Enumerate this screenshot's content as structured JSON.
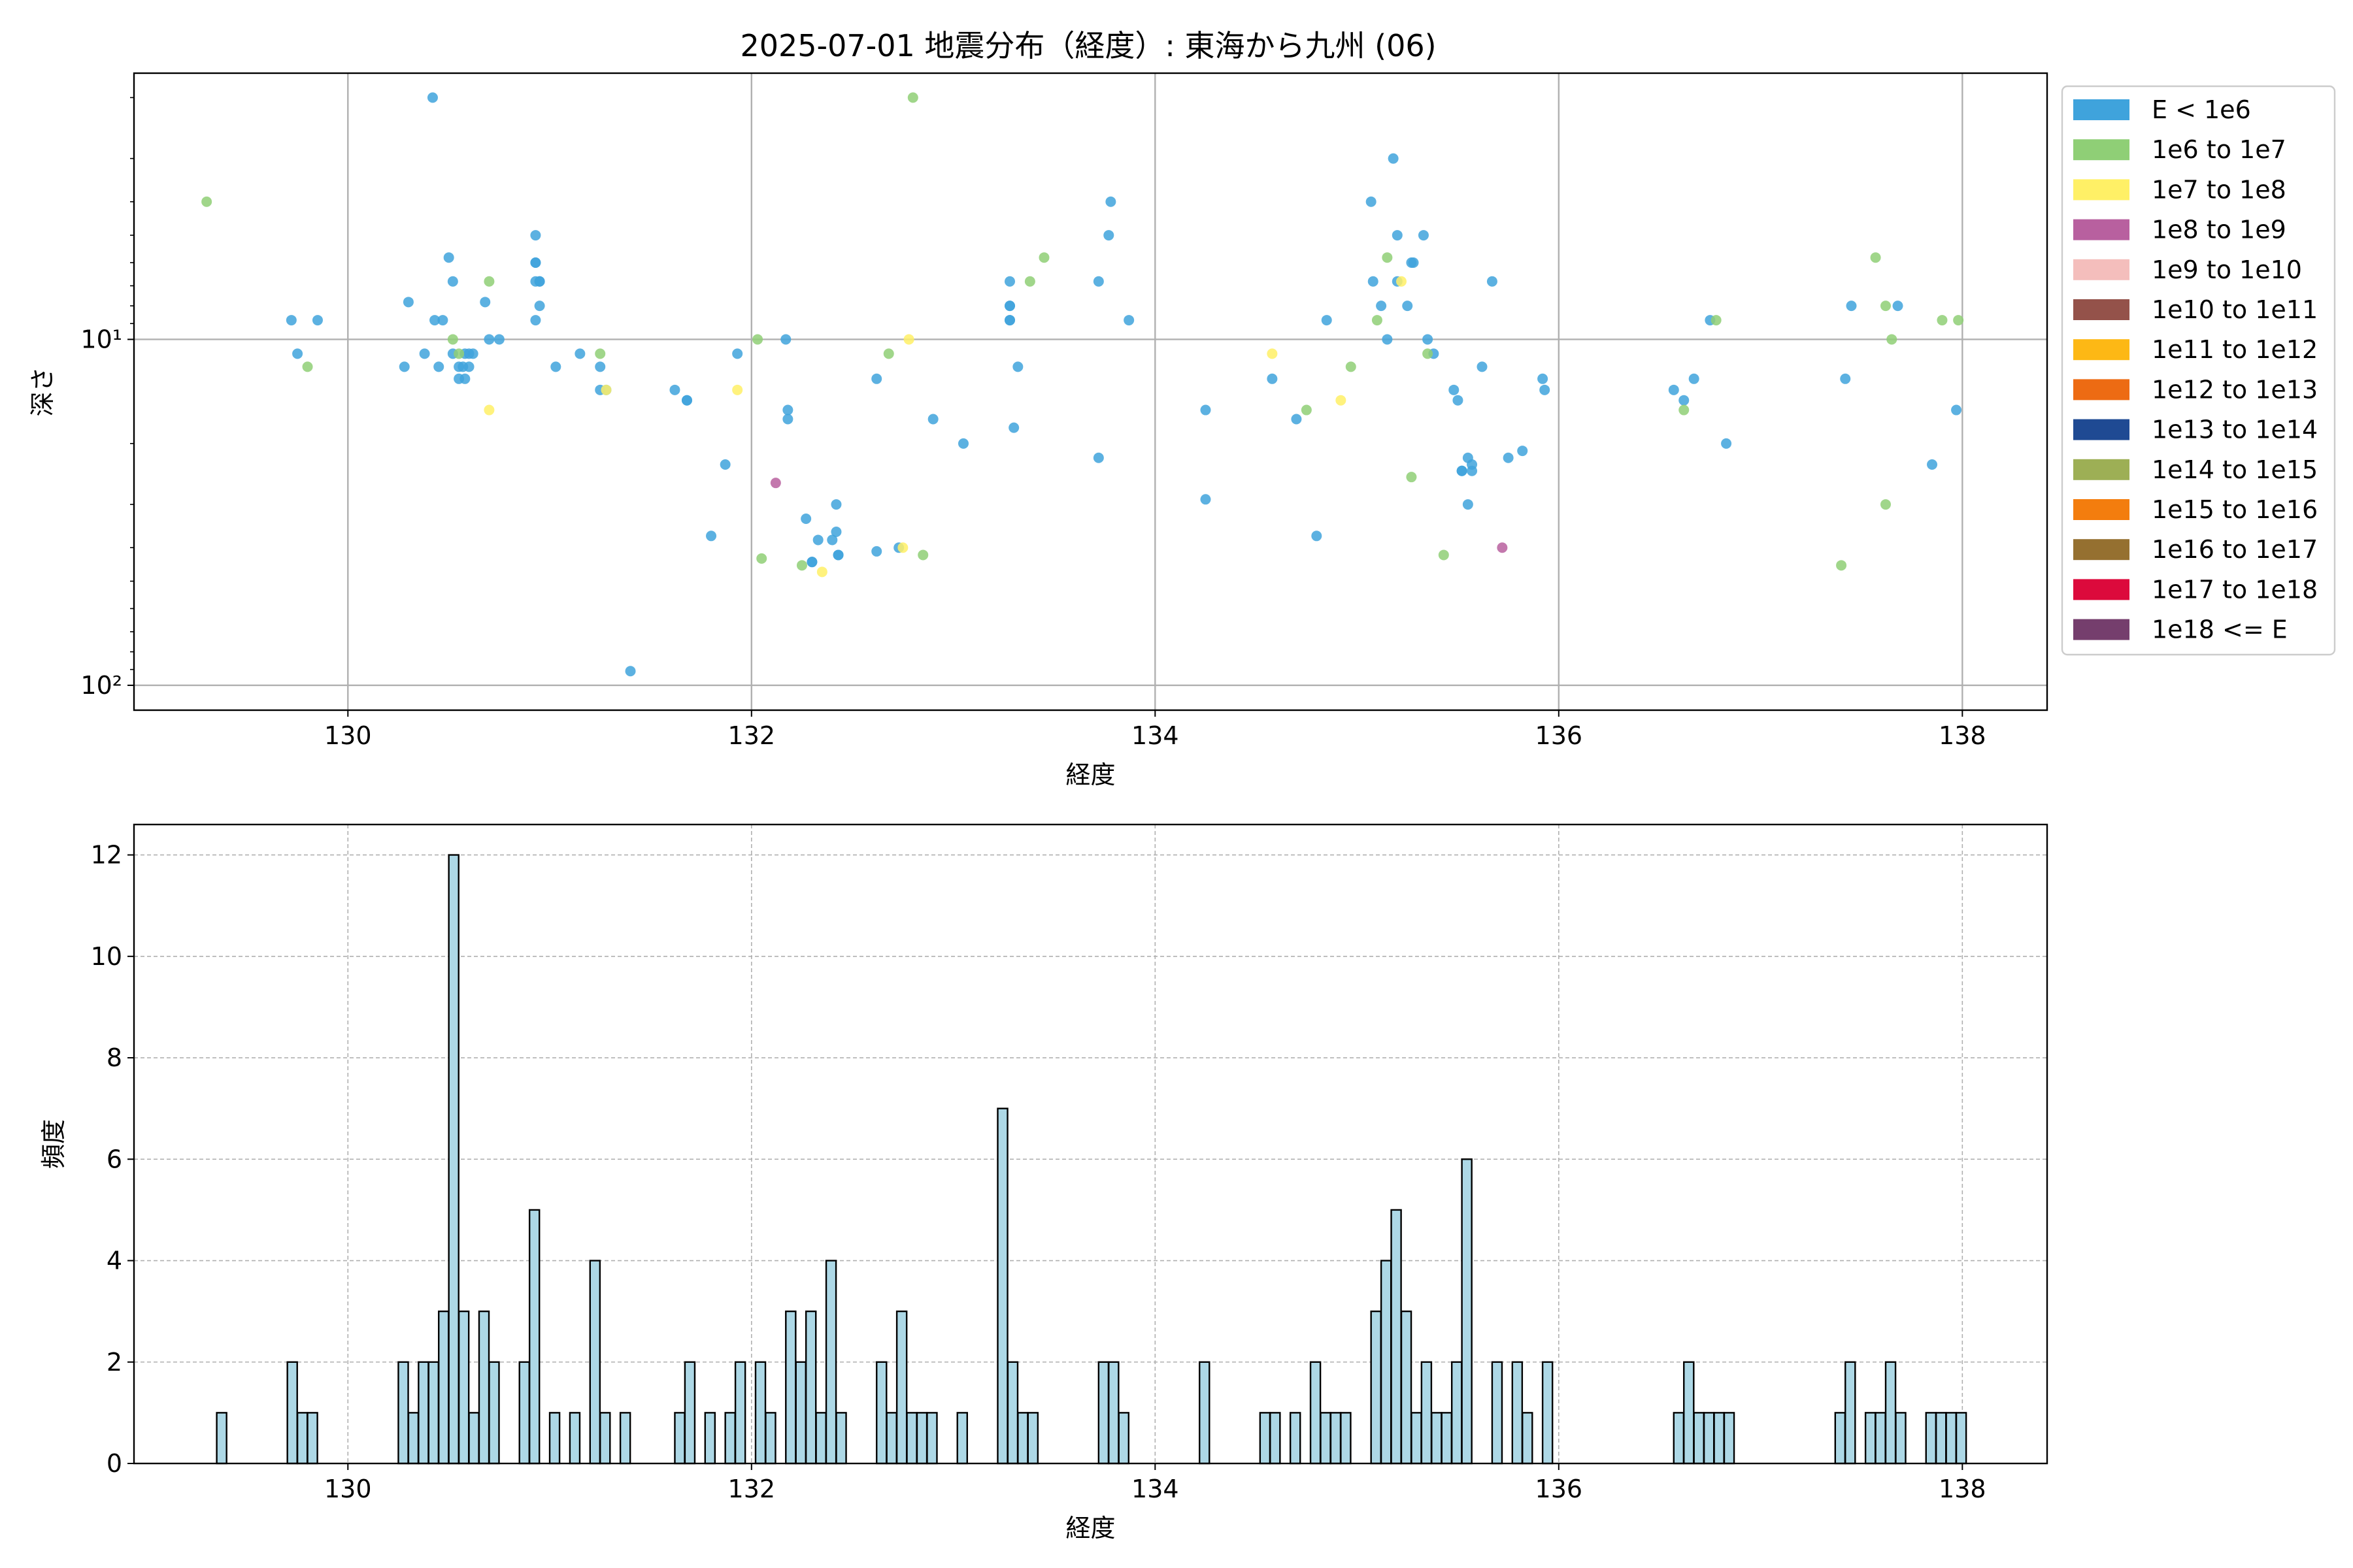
{
  "figure": {
    "title": "2025-07-01 地震分布（経度）: 東海から九州 (06)"
  },
  "chart_data": [
    {
      "type": "scatter",
      "title": "2025-07-01 地震分布（経度）: 東海から九州 (06)",
      "xlabel": "経度",
      "ylabel": "深さ",
      "xlim": [
        128.94,
        138.42
      ],
      "ylim": [
        118,
        1.7
      ],
      "yscale": "log",
      "y_inverted": true,
      "grid": true,
      "xticks": [
        130,
        132,
        134,
        136,
        138
      ],
      "xtick_labels": [
        "130",
        "132",
        "134",
        "136",
        "138"
      ],
      "yticks": [
        10,
        100
      ],
      "ytick_labels": [
        "10¹",
        "10²"
      ],
      "legend_position": "outside upper right",
      "legend": [
        {
          "label": "E < 1e6",
          "color": "#3fa3dc"
        },
        {
          "label": "1e6 to 1e7",
          "color": "#8fcf76"
        },
        {
          "label": "1e7 to 1e8",
          "color": "#fff066"
        },
        {
          "label": "1e8 to 1e9",
          "color": "#b8609f"
        },
        {
          "label": "1e9 to 1e10",
          "color": "#f4bebc"
        },
        {
          "label": "1e10 to 1e11",
          "color": "#94524a"
        },
        {
          "label": "1e11 to 1e12",
          "color": "#fdb815"
        },
        {
          "label": "1e12 to 1e13",
          "color": "#ed6b13"
        },
        {
          "label": "1e13 to 1e14",
          "color": "#1f4a93"
        },
        {
          "label": "1e14 to 1e15",
          "color": "#9daf55"
        },
        {
          "label": "1e15 to 1e16",
          "color": "#f37d0e"
        },
        {
          "label": "1e16 to 1e17",
          "color": "#957030"
        },
        {
          "label": "1e17 to 1e18",
          "color": "#dc0a3c"
        },
        {
          "label": "1e18 <= E",
          "color": "#753e6d"
        }
      ],
      "series": [
        {
          "name": "E < 1e6",
          "color": "#3fa3dc",
          "points": [
            [
              130.42,
              2.0
            ],
            [
              129.72,
              8.8
            ],
            [
              129.85,
              8.8
            ],
            [
              129.75,
              11
            ],
            [
              130.28,
              12
            ],
            [
              130.3,
              7.8
            ],
            [
              130.38,
              11
            ],
            [
              130.43,
              8.8
            ],
            [
              130.47,
              8.8
            ],
            [
              130.45,
              12
            ],
            [
              130.5,
              5.8
            ],
            [
              130.52,
              6.8
            ],
            [
              130.52,
              11
            ],
            [
              130.55,
              12
            ],
            [
              130.57,
              12
            ],
            [
              130.58,
              11
            ],
            [
              130.6,
              12
            ],
            [
              130.6,
              11
            ],
            [
              130.62,
              11
            ],
            [
              130.55,
              13
            ],
            [
              130.58,
              13
            ],
            [
              130.68,
              7.8
            ],
            [
              130.7,
              10
            ],
            [
              130.75,
              10
            ],
            [
              130.93,
              5
            ],
            [
              130.93,
              6
            ],
            [
              130.93,
              6
            ],
            [
              130.95,
              8
            ],
            [
              130.95,
              6.8
            ],
            [
              130.95,
              6.8
            ],
            [
              130.93,
              6.8
            ],
            [
              130.93,
              8.8
            ],
            [
              131.03,
              12
            ],
            [
              131.15,
              11
            ],
            [
              131.25,
              12
            ],
            [
              131.25,
              14
            ],
            [
              131.28,
              14
            ],
            [
              131.4,
              91
            ],
            [
              131.62,
              14
            ],
            [
              131.68,
              15
            ],
            [
              131.68,
              15
            ],
            [
              131.87,
              23
            ],
            [
              131.93,
              11
            ],
            [
              131.8,
              37
            ],
            [
              132.17,
              10
            ],
            [
              132.18,
              16
            ],
            [
              132.18,
              17
            ],
            [
              132.27,
              33
            ],
            [
              132.3,
              44
            ],
            [
              132.3,
              44
            ],
            [
              132.33,
              38
            ],
            [
              132.4,
              38
            ],
            [
              132.42,
              36
            ],
            [
              132.42,
              30
            ],
            [
              132.43,
              42
            ],
            [
              132.43,
              42
            ],
            [
              132.62,
              41
            ],
            [
              132.62,
              13
            ],
            [
              132.73,
              40
            ],
            [
              132.9,
              17
            ],
            [
              133.05,
              20
            ],
            [
              133.28,
              6.8
            ],
            [
              133.28,
              8.0
            ],
            [
              133.28,
              8.0
            ],
            [
              133.28,
              8.8
            ],
            [
              133.28,
              8.8
            ],
            [
              133.3,
              18
            ],
            [
              133.32,
              12
            ],
            [
              133.72,
              6.8
            ],
            [
              133.72,
              22
            ],
            [
              133.77,
              5
            ],
            [
              133.78,
              4
            ],
            [
              133.87,
              8.8
            ],
            [
              134.25,
              16
            ],
            [
              134.25,
              29
            ],
            [
              134.58,
              13
            ],
            [
              134.7,
              17
            ],
            [
              134.8,
              37
            ],
            [
              134.85,
              8.8
            ],
            [
              135.07,
              4
            ],
            [
              135.08,
              6.8
            ],
            [
              135.12,
              8
            ],
            [
              135.15,
              10
            ],
            [
              135.18,
              3
            ],
            [
              135.2,
              5
            ],
            [
              135.2,
              6.8
            ],
            [
              135.25,
              8
            ],
            [
              135.27,
              6
            ],
            [
              135.28,
              6
            ],
            [
              135.33,
              5
            ],
            [
              135.35,
              10
            ],
            [
              135.38,
              11
            ],
            [
              135.48,
              14
            ],
            [
              135.5,
              15
            ],
            [
              135.52,
              24
            ],
            [
              135.52,
              24
            ],
            [
              135.55,
              22
            ],
            [
              135.55,
              30
            ],
            [
              135.57,
              24
            ],
            [
              135.57,
              23
            ],
            [
              135.62,
              12
            ],
            [
              135.67,
              6.8
            ],
            [
              135.75,
              22
            ],
            [
              135.82,
              21
            ],
            [
              135.92,
              13
            ],
            [
              135.93,
              14
            ],
            [
              136.57,
              14
            ],
            [
              136.62,
              15
            ],
            [
              136.67,
              13
            ],
            [
              136.75,
              8.8
            ],
            [
              136.83,
              20
            ],
            [
              137.42,
              13
            ],
            [
              137.45,
              8
            ],
            [
              137.68,
              8
            ],
            [
              137.85,
              23
            ],
            [
              137.97,
              16
            ]
          ]
        },
        {
          "name": "1e6 to 1e7",
          "color": "#8fcf76",
          "points": [
            [
              129.3,
              4
            ],
            [
              129.8,
              12
            ],
            [
              130.52,
              10
            ],
            [
              130.55,
              11
            ],
            [
              130.7,
              6.8
            ],
            [
              131.25,
              11
            ],
            [
              132.03,
              10
            ],
            [
              132.05,
              43
            ],
            [
              132.25,
              45
            ],
            [
              132.68,
              11
            ],
            [
              132.8,
              2.0
            ],
            [
              132.85,
              42
            ],
            [
              133.38,
              6.8
            ],
            [
              133.45,
              5.8
            ],
            [
              134.75,
              16
            ],
            [
              134.97,
              12
            ],
            [
              135.1,
              8.8
            ],
            [
              135.15,
              5.8
            ],
            [
              135.27,
              25
            ],
            [
              135.35,
              11
            ],
            [
              135.43,
              42
            ],
            [
              136.62,
              16
            ],
            [
              136.78,
              8.8
            ],
            [
              137.4,
              45
            ],
            [
              137.57,
              5.8
            ],
            [
              137.62,
              30
            ],
            [
              137.62,
              8
            ],
            [
              137.65,
              10
            ],
            [
              137.9,
              8.8
            ],
            [
              137.98,
              8.8
            ]
          ]
        },
        {
          "name": "1e7 to 1e8",
          "color": "#fff066",
          "points": [
            [
              130.7,
              16
            ],
            [
              131.28,
              14
            ],
            [
              131.93,
              14
            ],
            [
              132.35,
              47
            ],
            [
              132.75,
              40
            ],
            [
              132.78,
              10
            ],
            [
              134.58,
              11
            ],
            [
              134.92,
              15
            ],
            [
              135.22,
              6.8
            ]
          ]
        },
        {
          "name": "1e8 to 1e9",
          "color": "#b8609f",
          "points": [
            [
              132.12,
              26
            ],
            [
              135.72,
              40
            ]
          ]
        }
      ]
    },
    {
      "type": "bar",
      "title": "",
      "xlabel": "経度",
      "ylabel": "頻度",
      "xlim": [
        128.94,
        138.42
      ],
      "ylim": [
        0,
        12.6
      ],
      "grid": true,
      "grid_style": "dashed",
      "bar_color": "#add8e6",
      "edge_color": "#000000",
      "bin_width": 0.0488,
      "xticks": [
        130,
        132,
        134,
        136,
        138
      ],
      "xtick_labels": [
        "130",
        "132",
        "134",
        "136",
        "138"
      ],
      "yticks": [
        0,
        2,
        4,
        6,
        8,
        10,
        12
      ],
      "ytick_labels": [
        "0",
        "2",
        "4",
        "6",
        "8",
        "10",
        "12"
      ],
      "bins": [
        [
          129.35,
          1
        ],
        [
          129.7,
          2
        ],
        [
          129.75,
          1
        ],
        [
          129.8,
          1
        ],
        [
          130.25,
          2
        ],
        [
          130.3,
          1
        ],
        [
          130.35,
          2
        ],
        [
          130.4,
          2
        ],
        [
          130.45,
          3
        ],
        [
          130.5,
          12
        ],
        [
          130.55,
          3
        ],
        [
          130.6,
          1
        ],
        [
          130.65,
          3
        ],
        [
          130.7,
          2
        ],
        [
          130.85,
          2
        ],
        [
          130.9,
          5
        ],
        [
          131.0,
          1
        ],
        [
          131.1,
          1
        ],
        [
          131.2,
          4
        ],
        [
          131.25,
          1
        ],
        [
          131.35,
          1
        ],
        [
          131.62,
          1
        ],
        [
          131.67,
          2
        ],
        [
          131.77,
          1
        ],
        [
          131.87,
          1
        ],
        [
          131.92,
          2
        ],
        [
          132.02,
          2
        ],
        [
          132.07,
          1
        ],
        [
          132.17,
          3
        ],
        [
          132.22,
          2
        ],
        [
          132.27,
          3
        ],
        [
          132.32,
          1
        ],
        [
          132.37,
          4
        ],
        [
          132.42,
          1
        ],
        [
          132.62,
          2
        ],
        [
          132.67,
          1
        ],
        [
          132.72,
          3
        ],
        [
          132.77,
          1
        ],
        [
          132.82,
          1
        ],
        [
          132.87,
          1
        ],
        [
          133.02,
          1
        ],
        [
          133.22,
          7
        ],
        [
          133.27,
          2
        ],
        [
          133.32,
          1
        ],
        [
          133.37,
          1
        ],
        [
          133.72,
          2
        ],
        [
          133.77,
          2
        ],
        [
          133.82,
          1
        ],
        [
          134.22,
          2
        ],
        [
          134.52,
          1
        ],
        [
          134.57,
          1
        ],
        [
          134.67,
          1
        ],
        [
          134.77,
          2
        ],
        [
          134.82,
          1
        ],
        [
          134.87,
          1
        ],
        [
          134.92,
          1
        ],
        [
          135.07,
          3
        ],
        [
          135.12,
          4
        ],
        [
          135.17,
          5
        ],
        [
          135.22,
          3
        ],
        [
          135.27,
          1
        ],
        [
          135.32,
          2
        ],
        [
          135.37,
          1
        ],
        [
          135.42,
          1
        ],
        [
          135.47,
          2
        ],
        [
          135.52,
          6
        ],
        [
          135.67,
          2
        ],
        [
          135.77,
          2
        ],
        [
          135.82,
          1
        ],
        [
          135.92,
          2
        ],
        [
          136.57,
          1
        ],
        [
          136.62,
          2
        ],
        [
          136.67,
          1
        ],
        [
          136.72,
          1
        ],
        [
          136.77,
          1
        ],
        [
          136.82,
          1
        ],
        [
          137.37,
          1
        ],
        [
          137.42,
          2
        ],
        [
          137.52,
          1
        ],
        [
          137.57,
          1
        ],
        [
          137.62,
          2
        ],
        [
          137.67,
          1
        ],
        [
          137.82,
          1
        ],
        [
          137.87,
          1
        ],
        [
          137.92,
          1
        ],
        [
          137.97,
          1
        ]
      ]
    }
  ]
}
